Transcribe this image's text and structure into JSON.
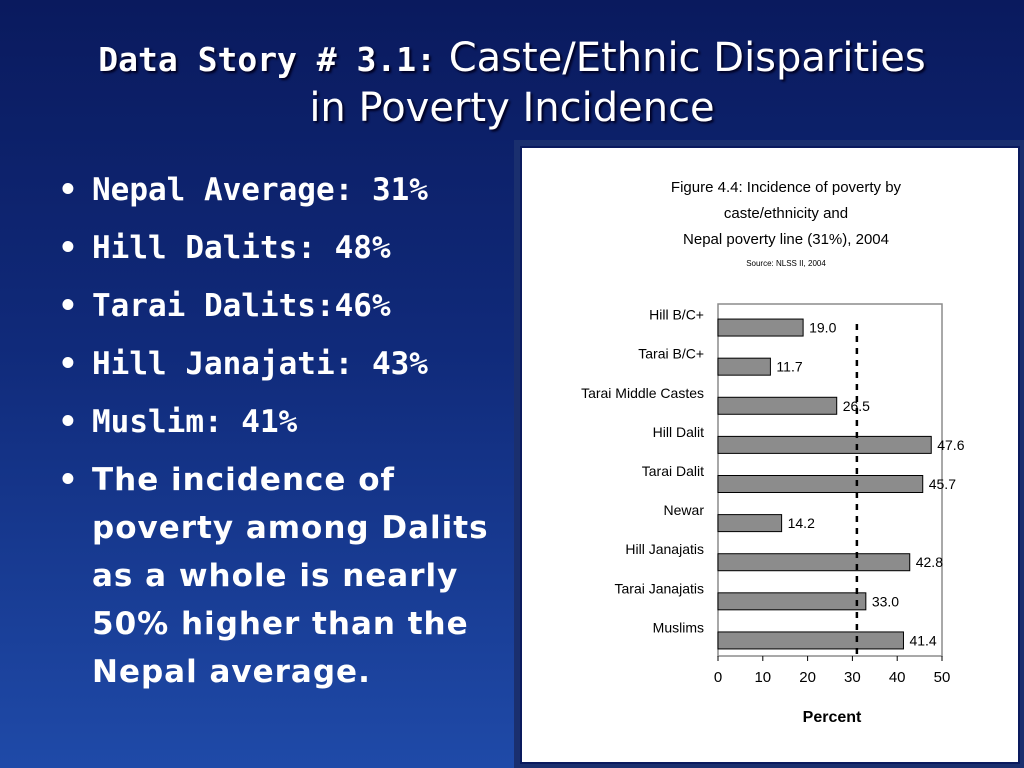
{
  "slide": {
    "title_prefix": "Data Story # 3.1:",
    "title_line1": "Caste/Ethnic Disparities",
    "title_line2": "in Poverty Incidence",
    "bullets": [
      "Nepal Average: 31%",
      "Hill Dalits: 48%",
      "Tarai Dalits:46%",
      "Hill Janajati: 43%",
      "Muslim: 41%"
    ],
    "paragraph_bullet": "The incidence of poverty among Dalits as a whole is nearly 50%  higher than the Nepal average."
  },
  "chart_data": {
    "type": "bar",
    "orientation": "horizontal",
    "title_lines": [
      "Figure 4.4: Incidence of poverty by",
      "caste/ethnicity and",
      "Nepal poverty line (31%), 2004"
    ],
    "source": "Source: NLSS II, 2004",
    "categories": [
      "Hill B/C+",
      "Tarai B/C+",
      "Tarai Middle Castes",
      "Hill Dalit",
      "Tarai Dalit",
      "Newar",
      "Hill Janajatis",
      "Tarai Janajatis",
      "Muslims"
    ],
    "values": [
      19.0,
      11.7,
      26.5,
      47.6,
      45.7,
      14.2,
      42.8,
      33.0,
      41.4
    ],
    "value_labels": [
      "19.0",
      "11.7",
      "26.5",
      "47.6",
      "45.7",
      "14.2",
      "42.8",
      "33.0",
      "41.4"
    ],
    "reference_line": 31,
    "xlim": [
      0,
      50
    ],
    "xticks": [
      "0",
      "10",
      "20",
      "30",
      "40",
      "50"
    ],
    "xlabel": "Percent",
    "bar_color": "#8c8c8c",
    "grid": false
  }
}
